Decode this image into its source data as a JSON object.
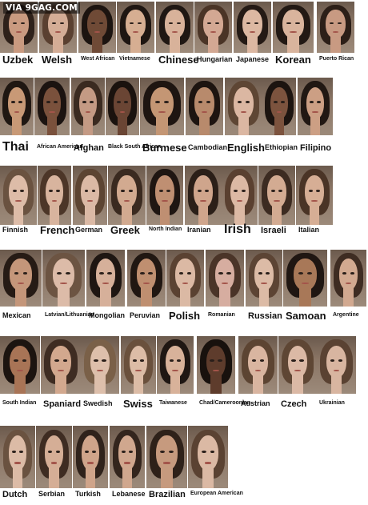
{
  "watermark": "VIA 9GAG.COM",
  "faces": [
    {
      "label": "Uzbek",
      "skin": "#c99a80",
      "hair": "#2e211a"
    },
    {
      "label": "Welsh",
      "skin": "#d4ad96",
      "hair": "#5a4030"
    },
    {
      "label": "West African",
      "skin": "#6f4a36",
      "hair": "#1c1410"
    },
    {
      "label": "Vietnamese",
      "skin": "#d6ae92",
      "hair": "#1e1612"
    },
    {
      "label": "Chinese",
      "skin": "#d8b29a",
      "hair": "#1f1713"
    },
    {
      "label": "Hungarian",
      "skin": "#d3a893",
      "hair": "#4a3426"
    },
    {
      "label": "Japanese",
      "skin": "#dcb8a2",
      "hair": "#241a15"
    },
    {
      "label": "Korean",
      "skin": "#d9b49d",
      "hair": "#221914"
    },
    {
      "label": "Puerto Rican",
      "skin": "#c89a82",
      "hair": "#2c1f18"
    },
    {
      "label": "Thai",
      "skin": "#c89976",
      "hair": "#1f1712"
    },
    {
      "label": "African American",
      "skin": "#7a513c",
      "hair": "#1b1310"
    },
    {
      "label": "Afghan",
      "skin": "#c49a84",
      "hair": "#3a2a20"
    },
    {
      "label": "Black South African",
      "skin": "#6a4534",
      "hair": "#1a120e"
    },
    {
      "label": "Burmese",
      "skin": "#c49674",
      "hair": "#1e1511"
    },
    {
      "label": "Cambodian",
      "skin": "#b88a6c",
      "hair": "#1d1410"
    },
    {
      "label": "English",
      "skin": "#dbb7a2",
      "hair": "#5e4634"
    },
    {
      "label": "Ethiopian",
      "skin": "#7c533e",
      "hair": "#1c1410"
    },
    {
      "label": "Filipino",
      "skin": "#cc9f84",
      "hair": "#211813"
    },
    {
      "label": "Finnish",
      "skin": "#ddbca8",
      "hair": "#6a5240"
    },
    {
      "label": "French",
      "skin": "#d8b49e",
      "hair": "#4c3628"
    },
    {
      "label": "German",
      "skin": "#dbb9a5",
      "hair": "#5c4432"
    },
    {
      "label": "Greek",
      "skin": "#d2aa90",
      "hair": "#3a2a20"
    },
    {
      "label": "North Indian",
      "skin": "#bf8f72",
      "hair": "#1f1612"
    },
    {
      "label": "Iranian",
      "skin": "#cfa58c",
      "hair": "#2b1f18"
    },
    {
      "label": "Irish",
      "skin": "#dcb9a4",
      "hair": "#5a4030"
    },
    {
      "label": "Israeli",
      "skin": "#d3ab92",
      "hair": "#3c2b21"
    },
    {
      "label": "Italian",
      "skin": "#d6ae95",
      "hair": "#4a3426"
    },
    {
      "label": "Mexican",
      "skin": "#c4967a",
      "hair": "#261b15"
    },
    {
      "label": "Latvian/Lithuanian",
      "skin": "#dcbba8",
      "hair": "#6c5442"
    },
    {
      "label": "Mongolian",
      "skin": "#d6b09a",
      "hair": "#1e1612"
    },
    {
      "label": "Peruvian",
      "skin": "#bf8f70",
      "hair": "#201712"
    },
    {
      "label": "Polish",
      "skin": "#dbb9a4",
      "hair": "#5a4232"
    },
    {
      "label": "Romanian",
      "skin": "#d6ada0",
      "hair": "#4a3428"
    },
    {
      "label": "Russian",
      "skin": "#dcbba6",
      "hair": "#5c4434"
    },
    {
      "label": "Samoan",
      "skin": "#a87858",
      "hair": "#1f1612"
    },
    {
      "label": "Argentine",
      "skin": "#d2a990",
      "hair": "#3e2c22"
    },
    {
      "label": "South Indian",
      "skin": "#a87456",
      "hair": "#1c1410"
    },
    {
      "label": "Spaniard",
      "skin": "#d2a88e",
      "hair": "#3e2c22"
    },
    {
      "label": "Swedish",
      "skin": "#ddbfab",
      "hair": "#7a6048"
    },
    {
      "label": "Swiss",
      "skin": "#dcbca6",
      "hair": "#6a503c"
    },
    {
      "label": "Taiwanese",
      "skin": "#d8b29a",
      "hair": "#1f1713"
    },
    {
      "label": "Chad/Cameroonian",
      "skin": "#5e3c2c",
      "hair": "#18110d"
    },
    {
      "label": "Austrian",
      "skin": "#d9b5a0",
      "hair": "#5c4432"
    },
    {
      "label": "Czech",
      "skin": "#dbb9a5",
      "hair": "#5e4634"
    },
    {
      "label": "Ukrainian",
      "skin": "#d8b5a0",
      "hair": "#5a4232"
    },
    {
      "label": "Dutch",
      "skin": "#dcbba6",
      "hair": "#6a5240"
    },
    {
      "label": "Serbian",
      "skin": "#d5ae96",
      "hair": "#3e2c22"
    },
    {
      "label": "Turkish",
      "skin": "#cfa48a",
      "hair": "#2f221b"
    },
    {
      "label": "Lebanese",
      "skin": "#d0a78e",
      "hair": "#33251d"
    },
    {
      "label": "Brazilian",
      "skin": "#c69a7e",
      "hair": "#2e2119"
    },
    {
      "label": "European American",
      "skin": "#dbb9a4",
      "hair": "#5a4232"
    }
  ]
}
